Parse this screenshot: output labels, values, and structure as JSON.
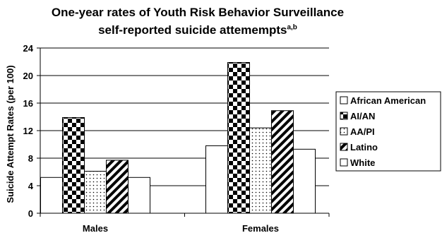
{
  "chart_data": {
    "type": "bar",
    "title_line1": "One-year rates of Youth Risk Behavior Surveillance",
    "title_line2": "self-reported suicide attemempts",
    "title_superscript": "a,b",
    "ylabel": "Suicide Attempt Rates (per 100)",
    "xlabel": "",
    "ylim": [
      0,
      24
    ],
    "yticks": [
      0,
      4,
      8,
      12,
      16,
      20,
      24
    ],
    "grid": true,
    "legend_position": "right",
    "categories": [
      "Males",
      "Females"
    ],
    "series": [
      {
        "name": "African American",
        "values": [
          5.2,
          9.8
        ],
        "pattern": "white"
      },
      {
        "name": "AI/AN",
        "values": [
          13.9,
          21.9
        ],
        "pattern": "checker"
      },
      {
        "name": "AA/PI",
        "values": [
          6.1,
          12.4
        ],
        "pattern": "dots"
      },
      {
        "name": "Latino",
        "values": [
          7.7,
          14.9
        ],
        "pattern": "diagonal"
      },
      {
        "name": "White",
        "values": [
          5.2,
          9.3
        ],
        "pattern": "white"
      }
    ]
  }
}
